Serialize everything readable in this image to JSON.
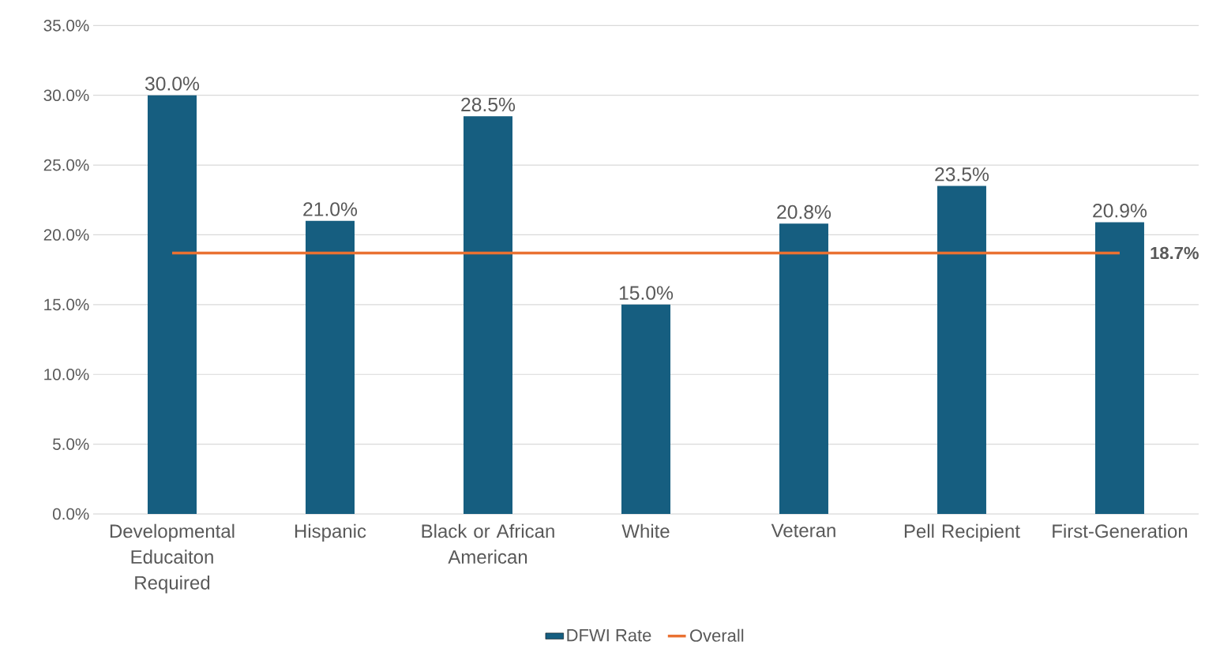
{
  "chart_data": {
    "type": "bar",
    "categories": [
      "Developmental Educaiton Required",
      "Hispanic",
      "Black or African American",
      "White",
      "Veteran",
      "Pell Recipient",
      "First-Generation"
    ],
    "series": [
      {
        "name": "DFWI Rate",
        "color": "#165e80",
        "values": [
          30.0,
          21.0,
          28.5,
          15.0,
          20.8,
          23.5,
          20.9
        ],
        "value_labels": [
          "30.0%",
          "21.0%",
          "28.5%",
          "15.0%",
          "20.8%",
          "23.5%",
          "20.9%"
        ]
      },
      {
        "name": "Overall",
        "type": "line",
        "color": "#e97132",
        "values": [
          18.7,
          18.7,
          18.7,
          18.7,
          18.7,
          18.7,
          18.7
        ],
        "value_labels": [
          null,
          null,
          null,
          null,
          null,
          null,
          "18.7%"
        ]
      }
    ],
    "ylim": [
      0,
      35
    ],
    "yticks": [
      {
        "value": 0,
        "label": "0.0%"
      },
      {
        "value": 5,
        "label": "5.0%"
      },
      {
        "value": 10,
        "label": "10.0%"
      },
      {
        "value": 15,
        "label": "15.0%"
      },
      {
        "value": 20,
        "label": "20.0%"
      },
      {
        "value": 25,
        "label": "25.0%"
      },
      {
        "value": 30,
        "label": "30.0%"
      },
      {
        "value": 35,
        "label": "35.0%"
      }
    ],
    "grid": "y",
    "legend": "bottom"
  }
}
